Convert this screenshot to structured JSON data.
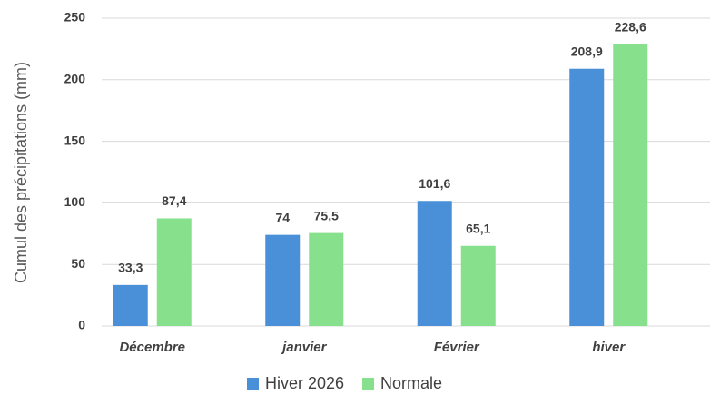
{
  "chart_data": {
    "type": "bar",
    "y_label": "Cumul des précipitations (mm)",
    "categories": [
      "Décembre",
      "janvier",
      "Février",
      "hiver"
    ],
    "series": [
      {
        "name": "Hiver 2026",
        "color": "#4a90d9",
        "values": [
          33.3,
          74,
          101.6,
          208.9
        ],
        "value_labels": [
          "33,3",
          "74",
          "101,6",
          "208,9"
        ]
      },
      {
        "name": "Normale",
        "color": "#86e08c",
        "values": [
          87.4,
          75.5,
          65.1,
          228.6
        ],
        "value_labels": [
          "87,4",
          "75,5",
          "65,1",
          "228,6"
        ]
      }
    ],
    "ylim": [
      0,
      250
    ],
    "yticks": [
      0,
      50,
      100,
      150,
      200,
      250
    ],
    "grid": true,
    "legend": "bottom"
  }
}
